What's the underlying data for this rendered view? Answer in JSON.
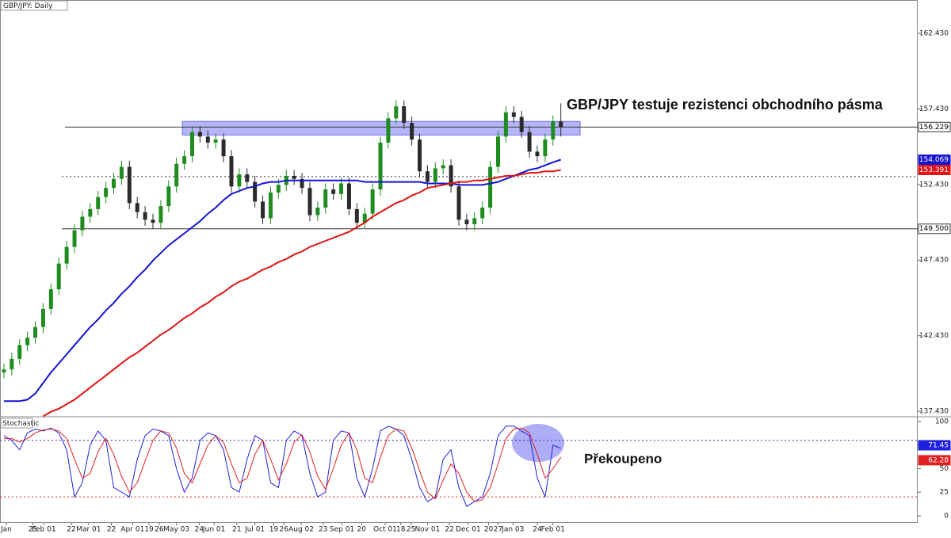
{
  "chart_data": [
    {
      "type": "candlestick",
      "title": "GBP/JPY: Daily",
      "annotation": "GBP/JPY testuje rezistenci obchodního pásma",
      "xlim": [
        -0.5,
        116.5
      ],
      "ylim": [
        137.12,
        164.63
      ],
      "yticks": [
        {
          "value": 137.43,
          "label": "137.430"
        },
        {
          "value": 142.43,
          "label": "142.430"
        },
        {
          "value": 147.43,
          "label": "147.430"
        },
        {
          "value": 152.43,
          "label": "152.430"
        },
        {
          "value": 157.43,
          "label": "157.430"
        },
        {
          "value": 162.43,
          "label": "162.430"
        }
      ],
      "up_color": "#1e8c1e",
      "down_color": "#2b2b2b",
      "open": [
        140.0,
        140.2,
        140.9,
        141.8,
        142.3,
        143.0,
        144.2,
        145.5,
        147.2,
        148.3,
        149.4,
        150.3,
        150.8,
        151.6,
        152.2,
        152.8,
        153.6,
        151.2,
        150.6,
        150.1,
        149.9,
        151.0,
        152.3,
        153.8,
        154.3,
        155.9,
        155.6,
        155.2,
        155.4,
        154.3,
        152.3,
        153.1,
        152.6,
        151.3,
        150.2,
        151.9,
        152.4,
        153.0,
        152.8,
        152.2,
        150.4,
        150.9,
        152.1,
        151.8,
        152.5,
        150.8,
        149.9,
        150.5,
        152.1,
        155.2,
        156.8,
        157.6,
        156.5,
        155.4,
        153.3,
        152.6,
        153.5,
        153.7,
        152.3,
        150.1,
        149.8,
        150.2,
        150.9,
        153.6,
        155.6,
        157.2,
        156.9,
        155.9,
        154.6,
        154.3,
        155.4,
        156.6
      ],
      "high": [
        140.6,
        141.3,
        142.2,
        142.7,
        143.4,
        144.6,
        145.9,
        147.6,
        148.7,
        149.8,
        150.7,
        151.2,
        152.0,
        152.6,
        153.2,
        154.0,
        154.0,
        151.6,
        151.0,
        150.5,
        151.4,
        152.7,
        154.2,
        154.7,
        156.3,
        156.3,
        156.0,
        155.8,
        155.8,
        154.7,
        153.5,
        153.5,
        153.0,
        151.7,
        152.3,
        152.8,
        153.4,
        153.4,
        153.2,
        152.6,
        151.3,
        152.5,
        152.5,
        152.9,
        152.9,
        151.2,
        150.9,
        152.5,
        155.6,
        157.2,
        158.0,
        158.0,
        156.9,
        155.8,
        153.7,
        153.9,
        154.1,
        154.1,
        152.7,
        150.5,
        150.6,
        151.3,
        154.0,
        156.0,
        157.6,
        157.6,
        157.3,
        156.3,
        155.0,
        155.8,
        157.0,
        157.8
      ],
      "low": [
        139.6,
        139.8,
        140.5,
        141.4,
        141.9,
        142.6,
        143.8,
        145.1,
        146.8,
        147.9,
        149.0,
        149.9,
        150.4,
        151.2,
        151.8,
        152.4,
        150.8,
        150.2,
        149.7,
        149.5,
        149.5,
        150.6,
        151.9,
        153.4,
        153.9,
        155.2,
        154.8,
        154.8,
        153.9,
        151.9,
        151.9,
        152.2,
        150.9,
        149.8,
        149.8,
        151.5,
        152.0,
        152.4,
        151.8,
        150.0,
        150.0,
        150.5,
        151.4,
        151.4,
        150.4,
        149.5,
        149.5,
        150.1,
        151.7,
        154.8,
        156.4,
        156.1,
        155.0,
        152.9,
        152.2,
        152.2,
        153.1,
        151.9,
        149.7,
        149.4,
        149.4,
        149.8,
        150.5,
        153.2,
        155.2,
        156.5,
        155.5,
        154.2,
        153.9,
        153.9,
        155.0,
        155.6
      ],
      "close": [
        140.2,
        140.9,
        141.8,
        142.3,
        143.0,
        144.2,
        145.5,
        147.2,
        148.3,
        149.4,
        150.3,
        150.8,
        151.6,
        152.2,
        152.8,
        153.6,
        151.2,
        150.6,
        150.1,
        149.9,
        151.0,
        152.3,
        153.8,
        154.3,
        155.9,
        155.6,
        155.2,
        155.4,
        154.3,
        152.3,
        153.1,
        152.6,
        151.3,
        150.2,
        151.9,
        152.4,
        153.0,
        152.8,
        152.2,
        150.4,
        150.9,
        152.1,
        151.8,
        152.5,
        150.8,
        149.9,
        150.5,
        152.1,
        155.2,
        156.8,
        157.6,
        156.5,
        155.4,
        153.3,
        152.6,
        153.5,
        153.7,
        152.3,
        150.1,
        149.8,
        150.2,
        150.9,
        153.6,
        155.6,
        157.2,
        156.9,
        155.9,
        154.6,
        154.3,
        155.4,
        156.6,
        156.229
      ],
      "ma": [
        {
          "color": "#1414d2",
          "values": [
            138.1,
            138.1,
            138.1,
            138.2,
            138.6,
            139.3,
            140.0,
            140.6,
            141.2,
            141.8,
            142.4,
            143.0,
            143.5,
            144.1,
            144.6,
            145.2,
            145.7,
            146.3,
            146.8,
            147.4,
            147.9,
            148.4,
            148.8,
            149.2,
            149.6,
            150.0,
            150.5,
            150.9,
            151.4,
            151.8,
            152.0,
            152.2,
            152.3,
            152.5,
            152.6,
            152.6,
            152.7,
            152.7,
            152.7,
            152.7,
            152.7,
            152.7,
            152.7,
            152.7,
            152.7,
            152.7,
            152.6,
            152.6,
            152.6,
            152.6,
            152.6,
            152.6,
            152.6,
            152.6,
            152.5,
            152.5,
            152.5,
            152.5,
            152.4,
            152.4,
            152.4,
            152.4,
            152.5,
            152.6,
            152.8,
            153.0,
            153.2,
            153.4,
            153.5,
            153.7,
            153.9,
            154.069
          ]
        },
        {
          "color": "#e01414",
          "values": [
            null,
            null,
            null,
            null,
            null,
            137.1,
            137.4,
            137.6,
            137.9,
            138.2,
            138.6,
            139.0,
            139.4,
            139.8,
            140.2,
            140.6,
            141.0,
            141.3,
            141.7,
            142.1,
            142.5,
            142.8,
            143.2,
            143.6,
            143.9,
            144.3,
            144.6,
            145.0,
            145.3,
            145.7,
            146.0,
            146.2,
            146.5,
            146.8,
            147.0,
            147.3,
            147.5,
            147.8,
            148.0,
            148.3,
            148.5,
            148.7,
            148.9,
            149.1,
            149.3,
            149.6,
            149.9,
            150.3,
            150.6,
            150.9,
            151.2,
            151.4,
            151.7,
            151.9,
            152.2,
            152.3,
            152.4,
            152.5,
            152.6,
            152.6,
            152.7,
            152.7,
            152.8,
            152.9,
            153.0,
            153.0,
            153.1,
            153.2,
            153.2,
            153.3,
            153.3,
            153.391
          ]
        }
      ],
      "zone": {
        "low": 155.7,
        "high": 156.6,
        "color": "#6b6bef"
      },
      "levels": [
        {
          "value": 149.5,
          "label": "149.500",
          "style": "solid"
        },
        {
          "value": 152.95,
          "style": "dotted"
        }
      ]
    },
    {
      "type": "line",
      "title": "Stochastic",
      "annotation": "Překoupeno",
      "xlim": [
        -0.5,
        116.5
      ],
      "ylim": [
        -7.6,
        104.2
      ],
      "yticks": [
        0,
        25,
        50,
        75,
        100
      ],
      "xticks": [
        {
          "value": 0.3,
          "label": "Jan"
        },
        {
          "value": 3.7,
          "label": "25"
        },
        {
          "value": 5.1,
          "label": "Feb 01"
        },
        {
          "value": 8.6,
          "label": "22"
        },
        {
          "value": 10.8,
          "label": "Mar 01"
        },
        {
          "value": 13.7,
          "label": "22"
        },
        {
          "value": 16.4,
          "label": "Apr 01"
        },
        {
          "value": 18.5,
          "label": "19"
        },
        {
          "value": 19.8,
          "label": "26"
        },
        {
          "value": 22.0,
          "label": "May 03"
        },
        {
          "value": 24.9,
          "label": "24"
        },
        {
          "value": 26.8,
          "label": "Jun 01"
        },
        {
          "value": 29.7,
          "label": "21"
        },
        {
          "value": 32.0,
          "label": "Jul 01"
        },
        {
          "value": 34.4,
          "label": "19"
        },
        {
          "value": 35.7,
          "label": "26"
        },
        {
          "value": 37.9,
          "label": "Aug 02"
        },
        {
          "value": 40.7,
          "label": "23"
        },
        {
          "value": 43.1,
          "label": "Sep 01"
        },
        {
          "value": 45.6,
          "label": "20"
        },
        {
          "value": 48.6,
          "label": "Oct 01"
        },
        {
          "value": 50.6,
          "label": "18"
        },
        {
          "value": 51.9,
          "label": "25"
        },
        {
          "value": 54.0,
          "label": "Nov 01"
        },
        {
          "value": 56.8,
          "label": "22"
        },
        {
          "value": 59.2,
          "label": "Dec 01"
        },
        {
          "value": 61.8,
          "label": "20"
        },
        {
          "value": 63.0,
          "label": "27"
        },
        {
          "value": 64.9,
          "label": "Jan 03"
        },
        {
          "value": 68.0,
          "label": "24"
        },
        {
          "value": 70.0,
          "label": "Feb 01"
        }
      ],
      "levels": [
        {
          "value": 80,
          "color": "#3030c0"
        },
        {
          "value": 20,
          "color": "#e02020"
        }
      ],
      "series": [
        {
          "color": "#2020e0",
          "values": [
            85,
            80,
            70,
            88,
            92,
            90,
            93,
            88,
            70,
            20,
            35,
            75,
            90,
            80,
            30,
            25,
            20,
            60,
            85,
            92,
            90,
            85,
            50,
            25,
            40,
            80,
            88,
            85,
            70,
            30,
            25,
            60,
            85,
            80,
            35,
            30,
            80,
            90,
            85,
            45,
            20,
            25,
            80,
            90,
            88,
            40,
            20,
            50,
            90,
            95,
            92,
            85,
            60,
            30,
            15,
            20,
            60,
            70,
            30,
            10,
            15,
            20,
            45,
            85,
            95,
            95,
            90,
            85,
            40,
            20,
            75,
            71.45
          ]
        },
        {
          "color": "#e02020",
          "values": [
            82,
            82,
            78,
            82,
            88,
            91,
            92,
            90,
            82,
            60,
            40,
            45,
            68,
            82,
            65,
            42,
            25,
            35,
            58,
            80,
            90,
            88,
            72,
            45,
            35,
            55,
            75,
            85,
            78,
            55,
            35,
            40,
            65,
            80,
            60,
            38,
            55,
            78,
            86,
            68,
            42,
            28,
            50,
            75,
            88,
            70,
            40,
            35,
            62,
            85,
            92,
            90,
            72,
            48,
            25,
            18,
            38,
            55,
            45,
            25,
            15,
            17,
            30,
            55,
            82,
            92,
            93,
            88,
            65,
            40,
            50,
            62.28
          ]
        }
      ]
    }
  ]
}
